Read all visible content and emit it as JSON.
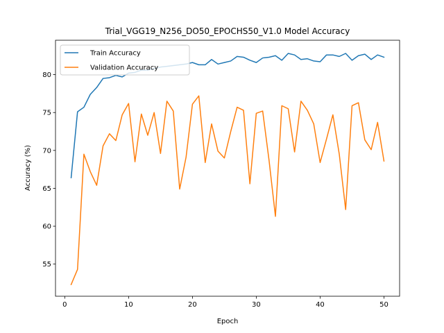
{
  "chart_data": {
    "type": "line",
    "title": "Trial_VGG19_N256_DO50_EPOCHS50_V1.0 Model Accuracy",
    "xlabel": "Epoch",
    "ylabel": "Accuracy (%)",
    "xlim": [
      -1.45,
      52.45
    ],
    "ylim": [
      50.76,
      84.54
    ],
    "xticks": [
      0,
      10,
      20,
      30,
      40,
      50
    ],
    "yticks": [
      55,
      60,
      65,
      70,
      75,
      80
    ],
    "grid": false,
    "legend_position": "upper-left",
    "x": [
      1,
      2,
      3,
      4,
      5,
      6,
      7,
      8,
      9,
      10,
      11,
      12,
      13,
      14,
      15,
      16,
      17,
      18,
      19,
      20,
      21,
      22,
      23,
      24,
      25,
      26,
      27,
      28,
      29,
      30,
      31,
      32,
      33,
      34,
      35,
      36,
      37,
      38,
      39,
      40,
      41,
      42,
      43,
      44,
      45,
      46,
      47,
      48,
      49,
      50
    ],
    "series": [
      {
        "name": "Train Accuracy",
        "color": "#1f77b4",
        "values": [
          66.4,
          75.1,
          75.7,
          77.4,
          78.3,
          79.5,
          79.6,
          79.9,
          79.7,
          80.2,
          80.3,
          80.6,
          80.6,
          80.8,
          81.0,
          81.1,
          81.2,
          81.3,
          81.4,
          81.6,
          81.3,
          81.3,
          82.0,
          81.4,
          81.6,
          81.8,
          82.4,
          82.3,
          81.9,
          81.6,
          82.2,
          82.3,
          82.5,
          81.9,
          82.8,
          82.6,
          82.0,
          82.1,
          81.8,
          81.7,
          82.6,
          82.6,
          82.4,
          82.8,
          81.9,
          82.5,
          82.7,
          82.0,
          82.6,
          82.3
        ]
      },
      {
        "name": "Validation Accuracy",
        "color": "#ff7f0e",
        "values": [
          52.3,
          54.3,
          69.5,
          67.2,
          65.4,
          70.6,
          72.2,
          71.3,
          74.7,
          76.2,
          68.5,
          74.8,
          72.0,
          75.0,
          69.6,
          76.5,
          75.2,
          64.9,
          69.1,
          76.1,
          77.2,
          68.4,
          73.5,
          69.9,
          69.0,
          72.5,
          75.7,
          75.3,
          65.6,
          74.9,
          75.2,
          68.7,
          61.3,
          75.9,
          75.5,
          69.8,
          76.5,
          75.3,
          73.5,
          68.4,
          71.5,
          74.7,
          69.5,
          62.2,
          75.9,
          76.3,
          71.4,
          70.1,
          73.7,
          68.6
        ]
      }
    ]
  }
}
